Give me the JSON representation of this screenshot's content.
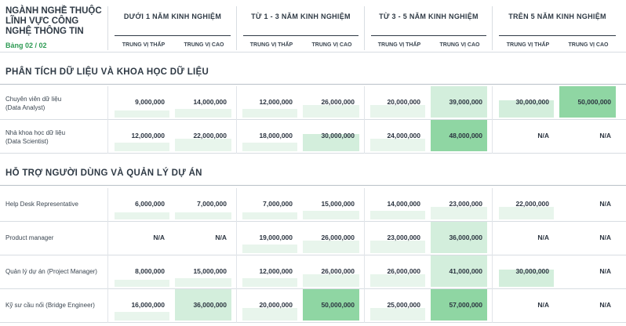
{
  "header": {
    "title": "NGÀNH NGHỀ THUỘC LĨNH VỰC CÔNG NGHỆ THÔNG TIN",
    "page": "Bảng 02 / 02",
    "groups": [
      {
        "title": "DƯỚI 1 NĂM KINH NGHIỆM",
        "low": "TRUNG VỊ THẤP",
        "high": "TRUNG VỊ CAO"
      },
      {
        "title": "TỪ 1 - 3 NĂM KINH NGHIỆM",
        "low": "TRUNG VỊ THẤP",
        "high": "TRUNG VỊ CAO"
      },
      {
        "title": "TỪ 3 - 5 NĂM KINH NGHIỆM",
        "low": "TRUNG VỊ THẤP",
        "high": "TRUNG VỊ CAO"
      },
      {
        "title": "TRÊN 5 NĂM KINH NGHIỆM",
        "low": "TRUNG VỊ THẤP",
        "high": "TRUNG VỊ CAO"
      }
    ]
  },
  "colors": {
    "bar_low": "#e8f5ec",
    "bar_mid": "#d3eedc",
    "bar_high": "#8fd6a3",
    "accent": "#2e9b54"
  },
  "sections": [
    {
      "title": "PHÂN TÍCH DỮ LIỆU VÀ KHOA HỌC DỮ LIỆU",
      "rows": [
        {
          "label": [
            "Chuyên viên dữ liệu",
            "(Data Analyst)"
          ],
          "values": [
            "9,000,000",
            "14,000,000",
            "12,000,000",
            "26,000,000",
            "20,000,000",
            "39,000,000",
            "30,000,000",
            "50,000,000"
          ]
        },
        {
          "label": [
            "Nhà khoa học dữ liệu",
            "(Data Scientist)"
          ],
          "values": [
            "12,000,000",
            "22,000,000",
            "18,000,000",
            "30,000,000",
            "24,000,000",
            "48,000,000",
            "N/A",
            "N/A"
          ]
        }
      ]
    },
    {
      "title": "HỖ TRỢ NGƯỜI DÙNG VÀ QUẢN LÝ DỰ ÁN",
      "rows": [
        {
          "label": [
            "Help Desk Representative"
          ],
          "values": [
            "6,000,000",
            "7,000,000",
            "7,000,000",
            "15,000,000",
            "14,000,000",
            "23,000,000",
            "22,000,000",
            "N/A"
          ]
        },
        {
          "label": [
            "Product manager"
          ],
          "values": [
            "N/A",
            "N/A",
            "19,000,000",
            "26,000,000",
            "23,000,000",
            "36,000,000",
            "N/A",
            "N/A"
          ]
        },
        {
          "label": [
            "Quản lý dự án (Project Manager)"
          ],
          "values": [
            "8,000,000",
            "15,000,000",
            "12,000,000",
            "26,000,000",
            "26,000,000",
            "41,000,000",
            "30,000,000",
            "N/A"
          ]
        },
        {
          "label": [
            "Kỹ sư cầu nối (Bridge Engineer)"
          ],
          "values": [
            "16,000,000",
            "36,000,000",
            "20,000,000",
            "50,000,000",
            "25,000,000",
            "57,000,000",
            "N/A",
            "N/A"
          ]
        }
      ]
    }
  ]
}
